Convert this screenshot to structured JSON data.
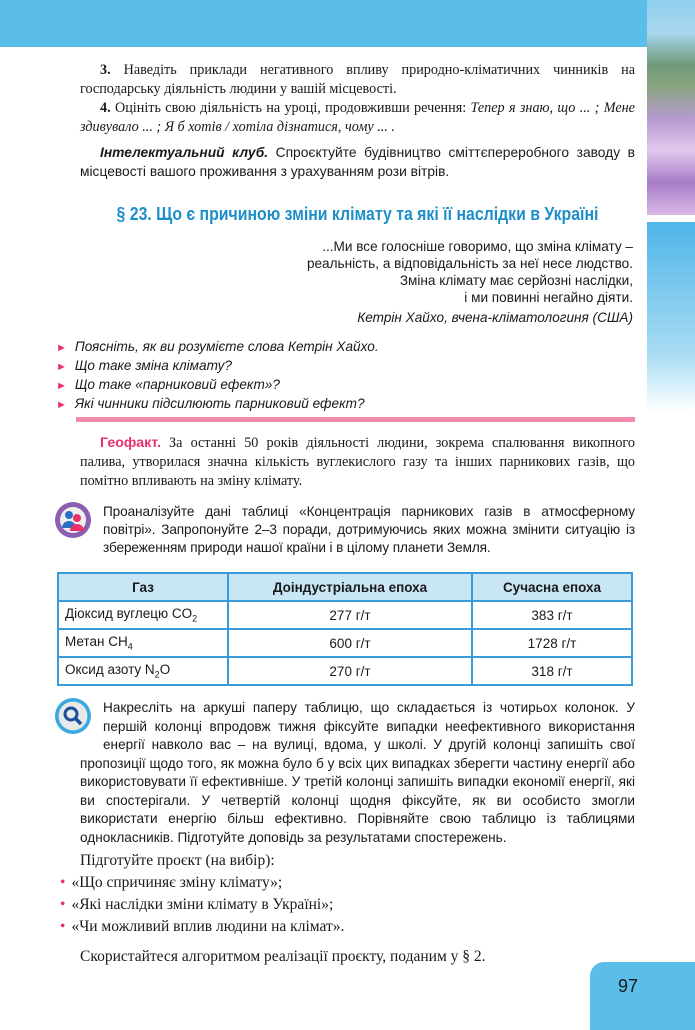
{
  "header": {
    "band_color": "#5bbdea"
  },
  "tasks": {
    "t3_num": "3.",
    "t3_text": " Наведіть приклади негативного впливу природно-кліматичних чинників на господарську діяльність людини у вашій місцевості.",
    "t4_num": "4.",
    "t4_text": " Оцініть свою діяльність на уроці, продовживши речення: ",
    "t4_italic": "Тепер я знаю, що ... ; Мене здивувало ... ; Я б хотів / хотіла дізнатися, чому ... ."
  },
  "club": {
    "label": "Інтелектуальний клуб.",
    "text": " Спроєктуйте будівництво сміттєпереробного заводу в місцевості вашого проживання з урахуванням рози вітрів."
  },
  "section_title": "§ 23. Що є причиною зміни клімату та які її наслідки в Україні",
  "epigraph": {
    "lines": [
      "...Ми все голосніше говоримо, що зміна клімату –",
      "реальність, а відповідальність за неї несе людство.",
      "Зміна клімату має серйозні наслідки,",
      "і ми повинні негайно діяти."
    ],
    "author": "Кетрін Хайхо, вчена-кліматологиня (США)"
  },
  "questions": [
    "Поясніть, як ви розумієте слова Кетрін Хайхо.",
    "Що таке зміна клімату?",
    "Що таке «парниковий ефект»?",
    "Які чинники підсилюють парниковий ефект?"
  ],
  "geofact": {
    "label": "Геофакт.",
    "text": " За останні 50 років діяльності людини, зокрема спалювання викопного палива, утворилася значна кількість вуглекислого газу та інших парникових газів, що помітно впливають на зміну клімату."
  },
  "group_task": {
    "icon": "group-people-icon",
    "text": "Проаналізуйте дані таблиці «Концентрація парникових газів в атмосферному повітрі». Запропонуйте 2–3 поради, дотримуючись яких можна змінити ситуацію із збереженням  природи нашої країни і в цілому планети Земля."
  },
  "table": {
    "headers": [
      "Газ",
      "Доіндустріальна епоха",
      "Сучасна епоха"
    ],
    "rows": [
      {
        "gas": "Діоксид вуглецю CO",
        "sub": "2",
        "tail": "",
        "pre": "277 г/т",
        "now": "383 г/т"
      },
      {
        "gas": "Метан CH",
        "sub": "4",
        "tail": "",
        "pre": "600 г/т",
        "now": "1728 г/т"
      },
      {
        "gas": "Оксид азоту N",
        "sub": "2",
        "tail": "O",
        "pre": "270 г/т",
        "now": "318 г/т"
      }
    ]
  },
  "research_task": {
    "icon": "magnifier-icon",
    "text": "Накресліть на аркуші паперу таблицю, що складається із чотирьох колонок. У першій колонці впродовж тижня фіксуйте випадки  неефективного використання енергії навколо вас – на вулиці, вдома, у школі. У другій колонці запишіть свої пропозиції щодо того, як можна було б у всіх цих випадках зберегти частину енергії або використовувати її ефективніше. У третій колонці запишіть випадки економії енергії, які ви спостерігали. У четвертій колонці щодня  фіксуйте, як ви особисто змогли використати енергію більш ефективно. Порівняйте свою таблицю із таблицями однокласників. Підготуйте доповідь за результатами спостережень."
  },
  "project": {
    "intro": "Підготуйте проєкт (на вибір):",
    "items": [
      "«Що спричиняє зміну клімату»;",
      "«Які наслідки зміни клімату в Україні»;",
      "«Чи можливий вплив людини на клімат»."
    ],
    "outro": "Скористайтеся алгоритмом реалізації проєкту, поданим у § 2."
  },
  "page_number": "97",
  "colors": {
    "accent_pink": "#e9306a",
    "title_blue": "#1c8ec9",
    "table_border": "#3a9bd6"
  }
}
